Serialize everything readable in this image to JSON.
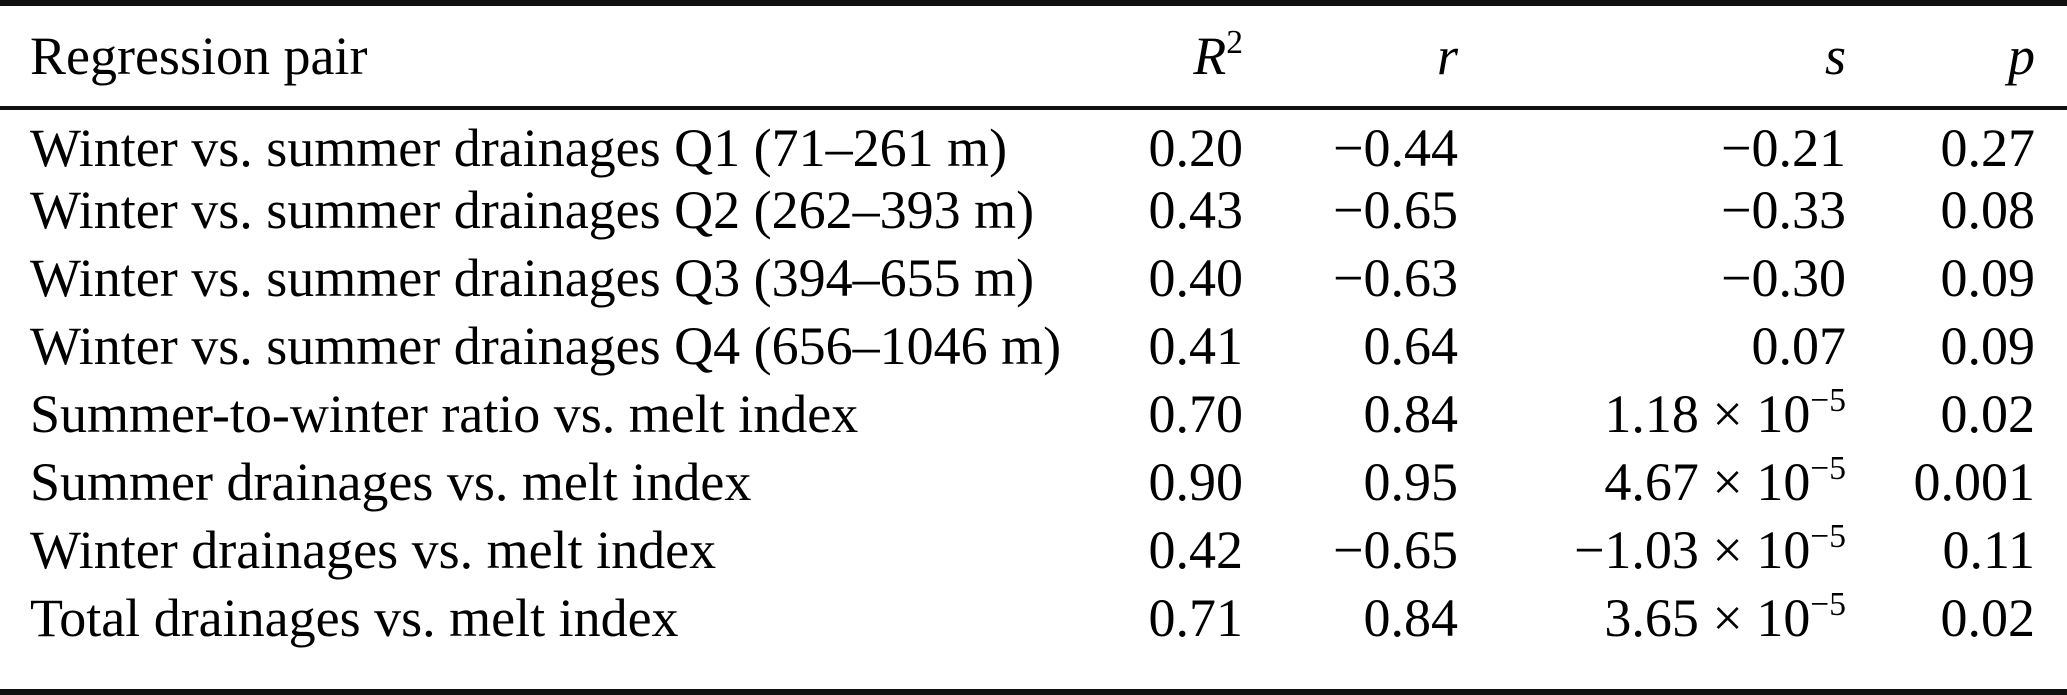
{
  "meta": {
    "kind": "regression-statistics-table",
    "colors": {
      "text": "#000000",
      "background": "#ffffff",
      "rule": "#111111"
    }
  },
  "table": {
    "header": {
      "col1": "Regression pair",
      "r2_base": "R",
      "r2_sup": "2",
      "r": "r",
      "s": "s",
      "p": "p"
    },
    "rows": [
      {
        "pair": "Winter vs. summer drainages Q1 (71–261 m)",
        "r2": "0.20",
        "r": "−0.44",
        "s_base": "−0.21",
        "p": "0.27"
      },
      {
        "pair": "Winter vs. summer drainages Q2 (262–393 m)",
        "r2": "0.43",
        "r": "−0.65",
        "s_base": "−0.33",
        "p": "0.08"
      },
      {
        "pair": "Winter vs. summer drainages Q3 (394–655 m)",
        "r2": "0.40",
        "r": "−0.63",
        "s_base": "−0.30",
        "p": "0.09"
      },
      {
        "pair": "Winter vs. summer drainages Q4 (656–1046 m)",
        "r2": "0.41",
        "r": "0.64",
        "s_base": "0.07",
        "p": "0.09"
      },
      {
        "pair": "Summer-to-winter ratio vs. melt index",
        "r2": "0.70",
        "r": "0.84",
        "s_base": "1.18 × 10",
        "s_exp": "−5",
        "p": "0.02"
      },
      {
        "pair": "Summer drainages vs. melt index",
        "r2": "0.90",
        "r": "0.95",
        "s_base": "4.67 × 10",
        "s_exp": "−5",
        "p": "0.001"
      },
      {
        "pair": "Winter drainages vs. melt index",
        "r2": "0.42",
        "r": "−0.65",
        "s_base": "−1.03 × 10",
        "s_exp": "−5",
        "p": "0.11"
      },
      {
        "pair": "Total drainages vs. melt index",
        "r2": "0.71",
        "r": "0.84",
        "s_base": "3.65 × 10",
        "s_exp": "−5",
        "p": "0.02"
      }
    ]
  }
}
